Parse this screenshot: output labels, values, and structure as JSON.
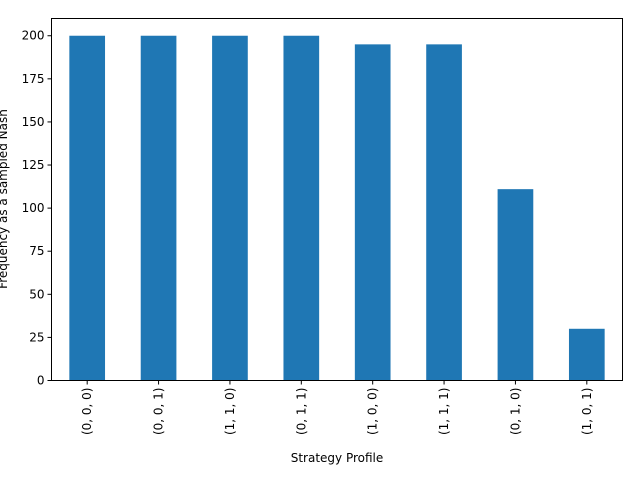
{
  "chart_data": {
    "type": "bar",
    "title": "",
    "xlabel": "Strategy Profile",
    "ylabel": "Frequency as a sampled Nash",
    "categories": [
      "(0, 0, 0)",
      "(0, 0, 1)",
      "(1, 1, 0)",
      "(0, 1, 1)",
      "(1, 0, 0)",
      "(1, 1, 1)",
      "(0, 1, 0)",
      "(1, 0, 1)"
    ],
    "values": [
      200,
      200,
      200,
      200,
      195,
      195,
      111,
      30
    ],
    "ylim": [
      0,
      210
    ],
    "yticks": [
      0,
      25,
      50,
      75,
      100,
      125,
      150,
      175,
      200
    ],
    "grid": false,
    "legend": "none",
    "bar_color": "#1f77b4"
  }
}
